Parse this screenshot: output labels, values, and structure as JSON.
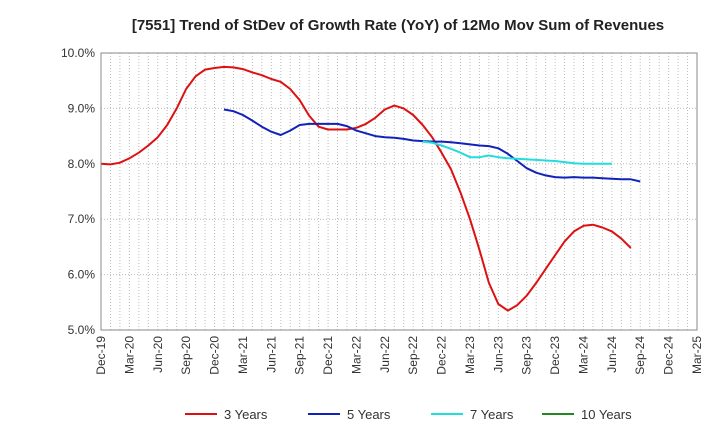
{
  "chart_data": {
    "type": "line",
    "title": "[7551]  Trend of StDev of Growth Rate (YoY) of 12Mo Mov Sum of Revenues",
    "xlabel": "",
    "ylabel": "",
    "ylim": [
      5.0,
      10.0
    ],
    "y_ticks": [
      "5.0%",
      "6.0%",
      "7.0%",
      "8.0%",
      "9.0%",
      "10.0%"
    ],
    "x_ticks": [
      "Dec-19",
      "Mar-20",
      "Jun-20",
      "Sep-20",
      "Dec-20",
      "Mar-21",
      "Jun-21",
      "Sep-21",
      "Dec-21",
      "Mar-22",
      "Jun-22",
      "Sep-22",
      "Dec-22",
      "Mar-23",
      "Jun-23",
      "Sep-23",
      "Dec-23",
      "Mar-24",
      "Jun-24",
      "Sep-24",
      "Dec-24",
      "Mar-25"
    ],
    "grid": true,
    "legend_position": "bottom",
    "series": [
      {
        "name": "3 Years",
        "color": "#dd1111",
        "start_index": 0,
        "values": [
          8.0,
          7.99,
          8.02,
          8.1,
          8.2,
          8.33,
          8.48,
          8.7,
          9.0,
          9.35,
          9.58,
          9.7,
          9.73,
          9.75,
          9.74,
          9.71,
          9.65,
          9.6,
          9.53,
          9.48,
          9.35,
          9.15,
          8.87,
          8.67,
          8.62,
          8.62,
          8.62,
          8.65,
          8.72,
          8.83,
          8.98,
          9.05,
          9.0,
          8.88,
          8.7,
          8.48,
          8.2,
          7.9,
          7.48,
          7.0,
          6.45,
          5.85,
          5.47,
          5.35,
          5.45,
          5.62,
          5.85,
          6.1,
          6.35,
          6.6,
          6.78,
          6.88,
          6.9,
          6.85,
          6.78,
          6.65,
          6.48
        ]
      },
      {
        "name": "5 Years",
        "color": "#1122bb",
        "start_index": 13,
        "values": [
          8.98,
          8.95,
          8.88,
          8.78,
          8.67,
          8.58,
          8.52,
          8.6,
          8.7,
          8.72,
          8.72,
          8.72,
          8.72,
          8.68,
          8.6,
          8.55,
          8.5,
          8.48,
          8.47,
          8.45,
          8.42,
          8.41,
          8.4,
          8.4,
          8.39,
          8.37,
          8.35,
          8.33,
          8.32,
          8.28,
          8.18,
          8.05,
          7.92,
          7.84,
          7.79,
          7.76,
          7.75,
          7.76,
          7.75,
          7.75,
          7.74,
          7.73,
          7.72,
          7.72,
          7.68
        ]
      },
      {
        "name": "7 Years",
        "color": "#22dddd",
        "start_index": 34,
        "values": [
          8.4,
          8.38,
          8.33,
          8.27,
          8.2,
          8.12,
          8.12,
          8.15,
          8.12,
          8.1,
          8.09,
          8.08,
          8.07,
          8.06,
          8.05,
          8.03,
          8.01,
          8.0,
          8.0,
          8.0,
          8.0
        ]
      },
      {
        "name": "10 Years",
        "color": "#228822",
        "start_index": 0,
        "values": []
      }
    ]
  }
}
